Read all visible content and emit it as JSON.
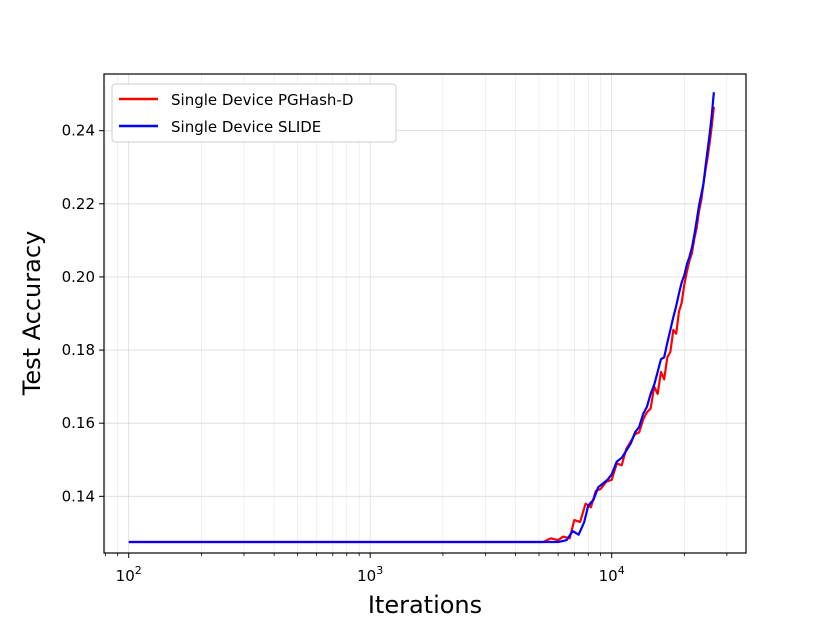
{
  "chart_data": {
    "type": "line",
    "title": "",
    "xlabel": "Iterations",
    "ylabel": "Test Accuracy",
    "xscale": "log",
    "xlim": [
      79,
      36000
    ],
    "ylim": [
      0.1245,
      0.2555
    ],
    "x_ticks": [
      {
        "value": 100,
        "base": "10",
        "exp": "2"
      },
      {
        "value": 1000,
        "base": "10",
        "exp": "3"
      },
      {
        "value": 10000,
        "base": "10",
        "exp": "4"
      }
    ],
    "y_ticks": [
      {
        "value": 0.14,
        "label": "0.14"
      },
      {
        "value": 0.16,
        "label": "0.16"
      },
      {
        "value": 0.18,
        "label": "0.18"
      },
      {
        "value": 0.2,
        "label": "0.20"
      },
      {
        "value": 0.22,
        "label": "0.22"
      },
      {
        "value": 0.24,
        "label": "0.24"
      }
    ],
    "grid": true,
    "legend_position": "top-left",
    "series": [
      {
        "name": "Single Device PGHash-D",
        "color": "#ff0000",
        "points": [
          [
            100,
            0.1275
          ],
          [
            5200,
            0.1275
          ],
          [
            5600,
            0.1285
          ],
          [
            6000,
            0.128
          ],
          [
            6300,
            0.129
          ],
          [
            6700,
            0.1285
          ],
          [
            7000,
            0.1335
          ],
          [
            7400,
            0.133
          ],
          [
            7800,
            0.138
          ],
          [
            8200,
            0.137
          ],
          [
            8600,
            0.1415
          ],
          [
            9000,
            0.142
          ],
          [
            9500,
            0.144
          ],
          [
            10000,
            0.1445
          ],
          [
            10500,
            0.149
          ],
          [
            11000,
            0.1485
          ],
          [
            11500,
            0.153
          ],
          [
            12000,
            0.155
          ],
          [
            12500,
            0.157
          ],
          [
            13000,
            0.1575
          ],
          [
            13500,
            0.161
          ],
          [
            14000,
            0.163
          ],
          [
            14500,
            0.164
          ],
          [
            15000,
            0.17
          ],
          [
            15500,
            0.168
          ],
          [
            16000,
            0.174
          ],
          [
            16500,
            0.172
          ],
          [
            17000,
            0.178
          ],
          [
            17500,
            0.1795
          ],
          [
            18000,
            0.1855
          ],
          [
            18500,
            0.1845
          ],
          [
            19000,
            0.1905
          ],
          [
            19500,
            0.193
          ],
          [
            20000,
            0.198
          ],
          [
            20500,
            0.2015
          ],
          [
            21000,
            0.2045
          ],
          [
            21500,
            0.2065
          ],
          [
            22000,
            0.2105
          ],
          [
            22500,
            0.2135
          ],
          [
            23000,
            0.218
          ],
          [
            23500,
            0.221
          ],
          [
            24000,
            0.2255
          ],
          [
            24500,
            0.2295
          ],
          [
            25000,
            0.233
          ],
          [
            25500,
            0.237
          ],
          [
            26000,
            0.2415
          ],
          [
            26500,
            0.2465
          ]
        ]
      },
      {
        "name": "Single Device SLIDE",
        "color": "#0000ff",
        "points": [
          [
            100,
            0.1275
          ],
          [
            6000,
            0.1275
          ],
          [
            6500,
            0.128
          ],
          [
            6900,
            0.1305
          ],
          [
            7300,
            0.1295
          ],
          [
            7700,
            0.133
          ],
          [
            8000,
            0.1375
          ],
          [
            8400,
            0.139
          ],
          [
            8800,
            0.1425
          ],
          [
            9200,
            0.1435
          ],
          [
            9600,
            0.1445
          ],
          [
            10000,
            0.146
          ],
          [
            10500,
            0.1495
          ],
          [
            11000,
            0.1505
          ],
          [
            11500,
            0.1525
          ],
          [
            12000,
            0.1545
          ],
          [
            12500,
            0.1575
          ],
          [
            13000,
            0.159
          ],
          [
            13500,
            0.1625
          ],
          [
            14000,
            0.1645
          ],
          [
            14500,
            0.168
          ],
          [
            15000,
            0.1705
          ],
          [
            15500,
            0.174
          ],
          [
            16000,
            0.1775
          ],
          [
            16500,
            0.178
          ],
          [
            17000,
            0.182
          ],
          [
            17500,
            0.1855
          ],
          [
            18000,
            0.189
          ],
          [
            18500,
            0.192
          ],
          [
            19000,
            0.1955
          ],
          [
            19500,
            0.1985
          ],
          [
            20000,
            0.2005
          ],
          [
            20500,
            0.2035
          ],
          [
            21000,
            0.2055
          ],
          [
            21500,
            0.208
          ],
          [
            22000,
            0.2115
          ],
          [
            22500,
            0.2155
          ],
          [
            23000,
            0.2195
          ],
          [
            23500,
            0.2225
          ],
          [
            24000,
            0.2255
          ],
          [
            24500,
            0.2305
          ],
          [
            25000,
            0.235
          ],
          [
            25500,
            0.2395
          ],
          [
            26000,
            0.2445
          ],
          [
            26500,
            0.2505
          ]
        ]
      }
    ]
  }
}
